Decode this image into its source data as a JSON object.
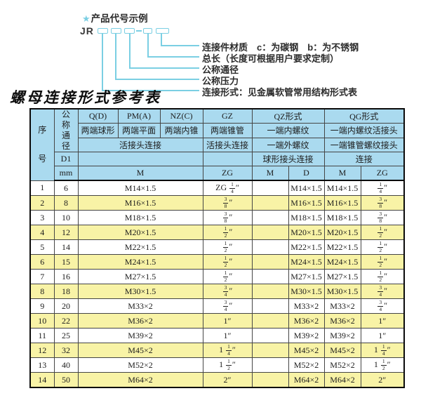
{
  "diagram": {
    "star": "★",
    "heading": "产品代号示例",
    "code_prefix": "JR",
    "labels": [
      "连接件材质　c：为碳钢　b：为不锈钢",
      "总长（长度可根据用户要求定制）",
      "公称通径",
      "公称压力",
      "连接形式：见金属软管常用结构形式表"
    ]
  },
  "table": {
    "title": "螺母连接形式参考表",
    "header": {
      "seq": "序号",
      "dn": "公称通径",
      "d1": "D1",
      "mm": "mm",
      "q": "Q(D)",
      "q_sub": "两端球形",
      "pm": "PM(A)",
      "pm_sub": "两端平面",
      "nz": "NZ(C)",
      "nz_sub": "两端内锥",
      "union_conn": "活接头连接",
      "m_unit": "M",
      "gz": "GZ",
      "gz_sub": "两端锥管",
      "gz_conn": "活接头连接",
      "gz_unit": "ZG",
      "qz": "QZ形式",
      "qz_row2": "一端内螺纹",
      "qz_row3": "一端外螺纹",
      "qz_row4": "球形接头连接",
      "qz_m": "M",
      "qz_d": "D",
      "qg": "QG形式",
      "qg_row2": "一端内螺纹活接头",
      "qg_row3": "一端锥管螺纹接头",
      "qg_row4": "连接",
      "qg_m": "M",
      "qg_zg": "ZG"
    },
    "rows": [
      [
        "1",
        "6",
        "M14×1.5",
        "ZG 1/4″",
        "",
        "M14×1.5",
        "M14×1.5",
        "1/4″"
      ],
      [
        "2",
        "8",
        "M16×1.5",
        "3/8″",
        "",
        "M16×1.5",
        "M16×1.5",
        "3/8″"
      ],
      [
        "3",
        "10",
        "M18×1.5",
        "3/8″",
        "",
        "M18×1.5",
        "M18×1.5",
        "3/8″"
      ],
      [
        "4",
        "12",
        "M20×1.5",
        "1/2″",
        "",
        "M20×1.5",
        "M20×1.5",
        "1/2″"
      ],
      [
        "5",
        "14",
        "M22×1.5",
        "1/2″",
        "",
        "M22×1.5",
        "M22×1.5",
        "1/2″"
      ],
      [
        "6",
        "15",
        "M24×1.5",
        "1/2″",
        "",
        "M24×1.5",
        "M24×1.5",
        "1/2″"
      ],
      [
        "7",
        "16",
        "M27×1.5",
        "1/2″",
        "",
        "M27×1.5",
        "M27×1.5",
        "1/2″"
      ],
      [
        "8",
        "18",
        "M30×1.5",
        "3/4″",
        "",
        "M30×1.5",
        "M30×1.5",
        "3/4″"
      ],
      [
        "9",
        "20",
        "M33×2",
        "3/4″",
        "",
        "M33×2",
        "M33×2",
        "3/4″"
      ],
      [
        "10",
        "22",
        "M36×2",
        "1″",
        "",
        "M36×2",
        "M36×2",
        "1″"
      ],
      [
        "11",
        "25",
        "M39×2",
        "1″",
        "",
        "M39×2",
        "M39×2",
        "1″"
      ],
      [
        "12",
        "32",
        "M45×2",
        "1 1/4″",
        "",
        "M45×2",
        "M45×2",
        "1 1/4″"
      ],
      [
        "13",
        "40",
        "M52×2",
        "1 1/2″",
        "",
        "M52×2",
        "M52×2",
        "1 1/2″"
      ],
      [
        "14",
        "50",
        "M64×2",
        "2″",
        "",
        "M64×2",
        "M64×2",
        "2″"
      ]
    ]
  },
  "colors": {
    "header_bg": "#aadaef",
    "row_alt_bg": "#f8f3a6",
    "accent_cyan": "#7bcfe3"
  }
}
